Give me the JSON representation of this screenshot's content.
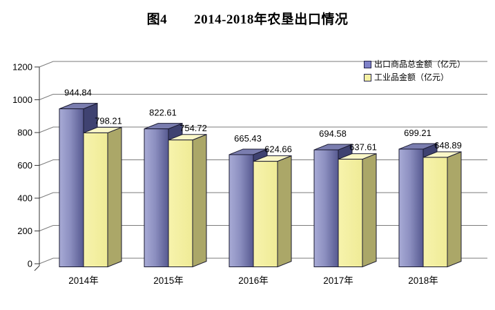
{
  "title": "图4　　2014-2018年农垦出口情况",
  "legend": {
    "items": [
      {
        "label": "出口商品总金额（亿元）",
        "color": "#7E81C8"
      },
      {
        "label": "工业品金额（亿元）",
        "color": "#F5F1A3"
      }
    ]
  },
  "chart_data": {
    "type": "bar",
    "subtype": "3d-clustered-column",
    "title": "图4　　2014-2018年农垦出口情况",
    "categories": [
      "2014年",
      "2015年",
      "2016年",
      "2017年",
      "2018年"
    ],
    "series": [
      {
        "name": "出口商品总金额（亿元）",
        "key": "export-total",
        "color": "#7E81C8",
        "values": [
          944.84,
          822.61,
          665.43,
          694.58,
          699.21
        ]
      },
      {
        "name": "工业品金额（亿元）",
        "key": "industrial-goods",
        "color": "#F5F1A3",
        "values": [
          798.21,
          754.72,
          624.66,
          637.61,
          648.89
        ]
      }
    ],
    "xlabel": "",
    "ylabel": "",
    "ylim": [
      0,
      1200
    ],
    "yticks": [
      0,
      200,
      400,
      600,
      800,
      1000,
      1200
    ],
    "grid": true,
    "legend_position": "top-right",
    "value_labels_shown": true
  }
}
